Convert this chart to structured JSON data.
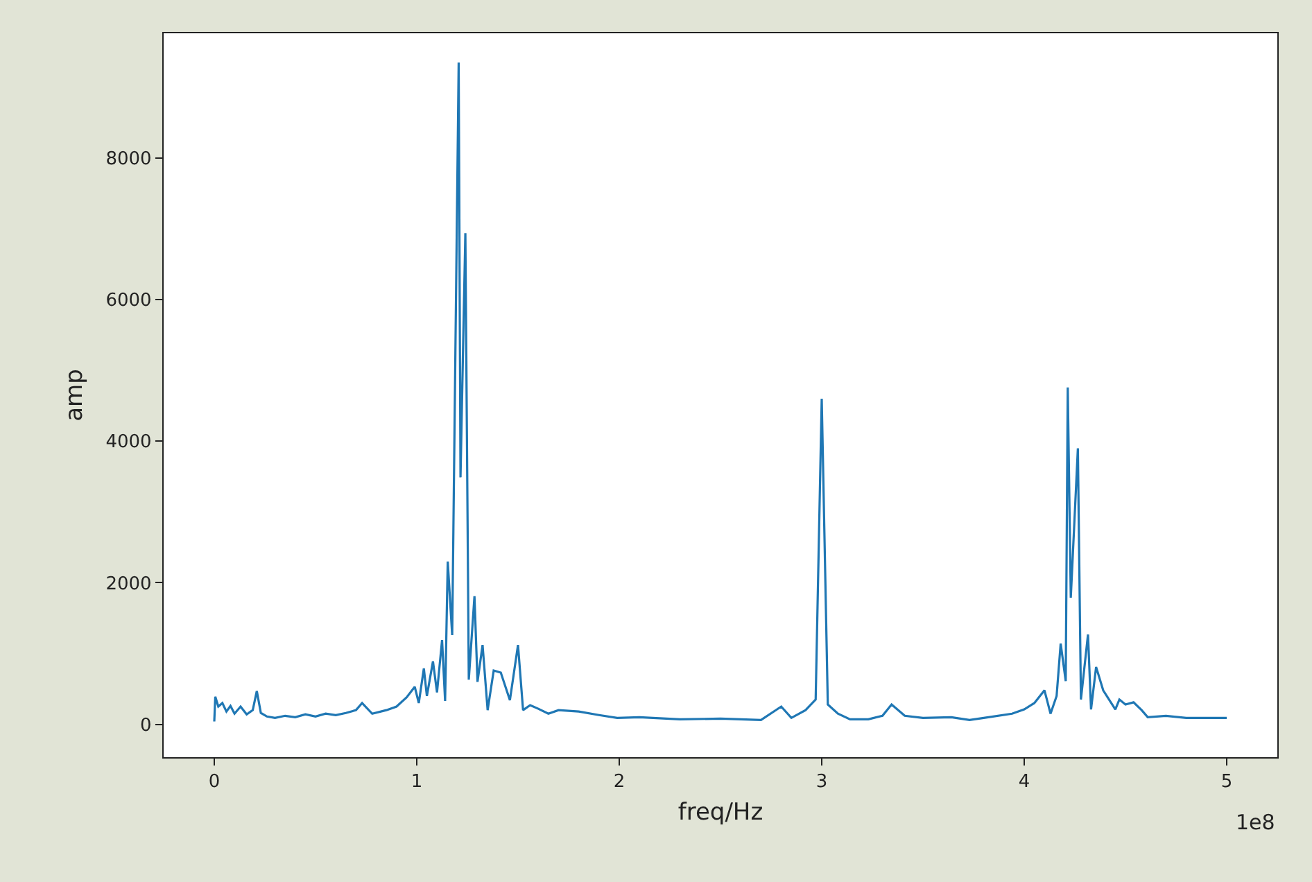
{
  "chart_data": {
    "type": "line",
    "xlabel": "freq/Hz",
    "ylabel": "amp",
    "annotations": [
      "1e8"
    ],
    "x": [
      0,
      0.005,
      0.02,
      0.04,
      0.06,
      0.08,
      0.1,
      0.13,
      0.16,
      0.19,
      0.21,
      0.23,
      0.26,
      0.3,
      0.35,
      0.4,
      0.45,
      0.5,
      0.55,
      0.6,
      0.65,
      0.7,
      0.73,
      0.78,
      0.85,
      0.9,
      0.95,
      0.99,
      1.01,
      1.035,
      1.05,
      1.08,
      1.1,
      1.125,
      1.14,
      1.153,
      1.175,
      1.207,
      1.216,
      1.24,
      1.257,
      1.285,
      1.3,
      1.325,
      1.35,
      1.38,
      1.415,
      1.46,
      1.5,
      1.525,
      1.56,
      1.6,
      1.65,
      1.7,
      1.8,
      1.9,
      1.99,
      2.1,
      2.3,
      2.5,
      2.7,
      2.8,
      2.85,
      2.92,
      2.97,
      3.0,
      3.03,
      3.08,
      3.14,
      3.23,
      3.3,
      3.345,
      3.41,
      3.5,
      3.64,
      3.73,
      3.8,
      3.94,
      4.0,
      4.05,
      4.1,
      4.13,
      4.16,
      4.18,
      4.205,
      4.215,
      4.23,
      4.265,
      4.28,
      4.315,
      4.33,
      4.355,
      4.39,
      4.45,
      4.47,
      4.5,
      4.54,
      4.58,
      4.61,
      4.7,
      4.8,
      4.9,
      5.0
    ],
    "series": [
      {
        "color": "#1f77b4",
        "values": [
          40,
          390,
          250,
          300,
          180,
          260,
          150,
          250,
          140,
          200,
          470,
          160,
          110,
          90,
          120,
          100,
          140,
          110,
          150,
          130,
          160,
          200,
          300,
          150,
          200,
          250,
          380,
          530,
          300,
          790,
          400,
          890,
          450,
          1190,
          330,
          2300,
          1260,
          9350,
          3490,
          6940,
          630,
          1810,
          600,
          1120,
          200,
          760,
          730,
          340,
          1120,
          200,
          270,
          220,
          150,
          200,
          180,
          130,
          90,
          100,
          70,
          80,
          60,
          250,
          90,
          200,
          350,
          4600,
          280,
          150,
          70,
          70,
          120,
          280,
          120,
          90,
          100,
          60,
          90,
          150,
          210,
          300,
          480,
          150,
          400,
          1140,
          610,
          4760,
          1790,
          3900,
          350,
          1270,
          210,
          810,
          480,
          210,
          350,
          280,
          310,
          200,
          100,
          120,
          90,
          90,
          90
        ]
      }
    ],
    "xlim": [
      -0.25,
      5.25
    ],
    "xticks": [
      0,
      1,
      2,
      3,
      4,
      5
    ],
    "ylim": [
      -465,
      9765
    ],
    "yticks": [
      0,
      2000,
      4000,
      6000,
      8000
    ],
    "grid": false,
    "marker": "none",
    "line_style": "solid"
  }
}
